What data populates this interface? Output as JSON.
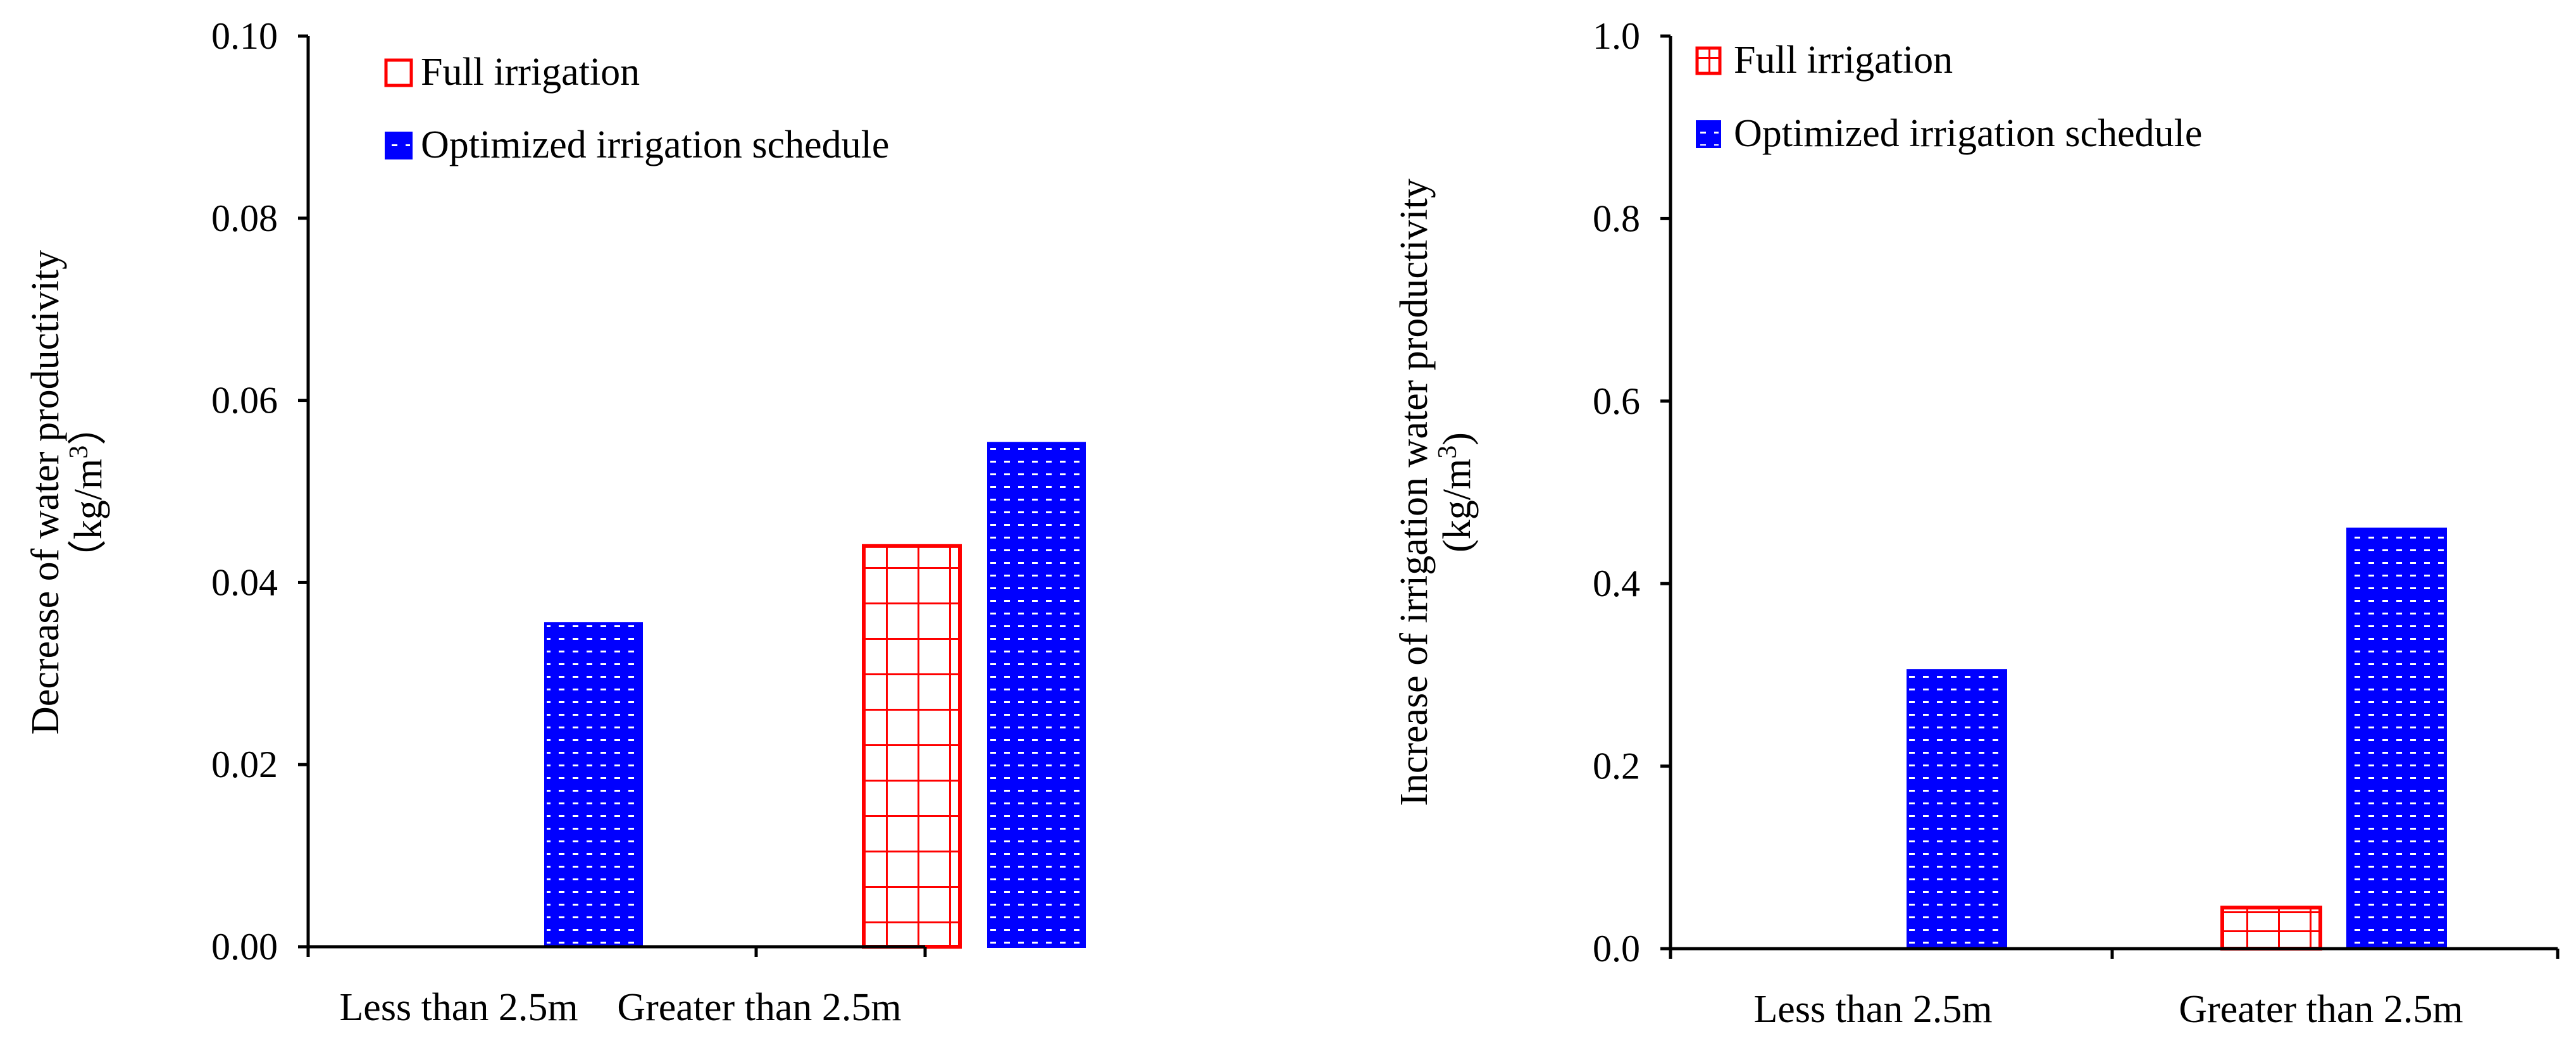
{
  "chart_data": [
    {
      "type": "bar",
      "categories": [
        "Less than 2.5m",
        "Greater than 2.5m"
      ],
      "series": [
        {
          "name": "Full irrigation",
          "values": [
            0,
            0.044
          ],
          "color": "#ff0000",
          "pattern": "grid"
        },
        {
          "name": "Optimized irrigation schedule",
          "values": [
            0.0355,
            0.0553
          ],
          "color": "#0000ff",
          "pattern": "dots"
        }
      ],
      "ylabel_line1": "Decrease of water productivity",
      "ylabel_line2_prefix": "（kg/m",
      "ylabel_line2_sup": "3",
      "ylabel_line2_suffix": "）",
      "ylim": [
        0,
        0.1
      ],
      "yticks": [
        "0.00",
        "0.02",
        "0.04",
        "0.06",
        "0.08",
        "0.10"
      ],
      "legend_position": "top-left"
    },
    {
      "type": "bar",
      "categories": [
        "Less than 2.5m",
        "Greater than 2.5m"
      ],
      "series": [
        {
          "name": "Full irrigation",
          "values": [
            0,
            0.045
          ],
          "color": "#ff0000",
          "pattern": "grid"
        },
        {
          "name": "Optimized irrigation schedule",
          "values": [
            0.305,
            0.46
          ],
          "color": "#0000ff",
          "pattern": "dots"
        }
      ],
      "ylabel_line1": "Increase of irrigation water productivity",
      "ylabel_line2_prefix": "(kg/m",
      "ylabel_line2_sup": "3",
      "ylabel_line2_suffix": ")",
      "ylim": [
        0,
        1.0
      ],
      "yticks": [
        "0.0",
        "0.2",
        "0.4",
        "0.6",
        "0.8",
        "1.0"
      ],
      "legend_position": "top-left"
    }
  ]
}
